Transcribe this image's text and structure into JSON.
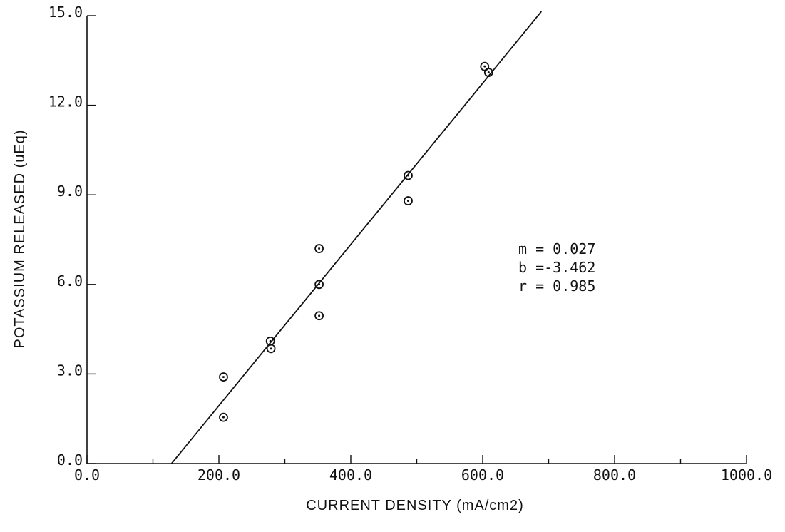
{
  "chart_data": {
    "type": "scatter",
    "title": "",
    "xlabel": "CURRENT DENSITY (mA/cm2)",
    "ylabel": "POTASSIUM RELEASED (uEq)",
    "xlim": [
      0,
      1000
    ],
    "ylim": [
      0,
      15
    ],
    "x_ticks": [
      0,
      200,
      400,
      600,
      800,
      1000
    ],
    "x_tick_labels": [
      "0.0",
      "200.0",
      "400.0",
      "600.0",
      "800.0",
      "1000.0"
    ],
    "x_minor_ticks": [
      100,
      300,
      500,
      700,
      900
    ],
    "y_ticks": [
      0,
      3,
      6,
      9,
      12,
      15
    ],
    "y_tick_labels": [
      "0.0",
      "3.0",
      "6.0",
      "9.0",
      "12.0",
      "15.0"
    ],
    "grid": false,
    "series": [
      {
        "marker": "circle",
        "points": [
          {
            "x": 207,
            "y": 2.9
          },
          {
            "x": 207,
            "y": 1.55
          },
          {
            "x": 278,
            "y": 4.1
          },
          {
            "x": 279,
            "y": 3.85
          },
          {
            "x": 352,
            "y": 7.2
          },
          {
            "x": 352,
            "y": 6.0
          },
          {
            "x": 352,
            "y": 4.95
          },
          {
            "x": 487,
            "y": 9.65
          },
          {
            "x": 487,
            "y": 8.8
          },
          {
            "x": 603,
            "y": 13.3
          },
          {
            "x": 609,
            "y": 13.1
          }
        ]
      }
    ],
    "fit_line": {
      "slope": 0.027,
      "intercept": -3.462,
      "x_start": 128,
      "x_end": 689
    },
    "annotations": [
      "m = 0.027",
      "b =-3.462",
      "r = 0.985"
    ]
  }
}
